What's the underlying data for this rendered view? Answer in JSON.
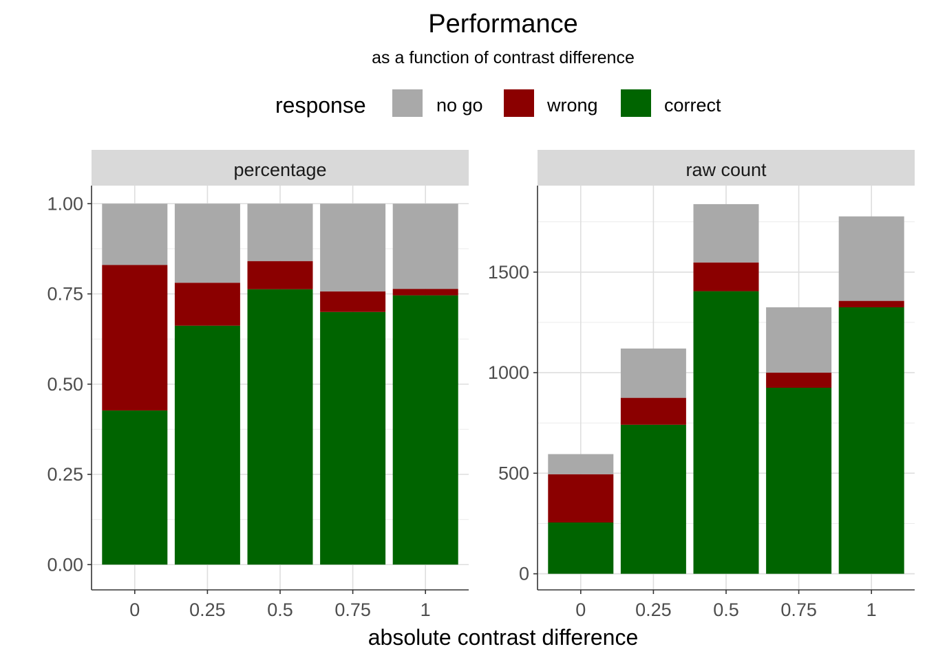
{
  "chart_data": {
    "type": "bar",
    "title": "Performance",
    "subtitle": "as a function of contrast difference",
    "xlabel": "absolute contrast difference",
    "legend": {
      "title": "response",
      "position": "top",
      "items": [
        {
          "label": "no go",
          "color": "#A9A9A9"
        },
        {
          "label": "wrong",
          "color": "#8B0000"
        },
        {
          "label": "correct",
          "color": "#006400"
        }
      ]
    },
    "categories": [
      "0",
      "0.25",
      "0.5",
      "0.75",
      "1"
    ],
    "panels": [
      {
        "strip": "percentage",
        "stacked": true,
        "ylim": [
          -0.07,
          1.05
        ],
        "yticks": [
          0,
          0.25,
          0.5,
          0.75,
          1
        ],
        "ytick_labels": [
          "0.00",
          "0.25",
          "0.50",
          "0.75",
          "1.00"
        ],
        "series": [
          {
            "name": "correct",
            "values": [
              0.427,
              0.662,
              0.763,
              0.7,
              0.746
            ]
          },
          {
            "name": "wrong",
            "values": [
              0.403,
              0.119,
              0.078,
              0.057,
              0.018
            ]
          },
          {
            "name": "no go",
            "values": [
              0.17,
              0.219,
              0.159,
              0.243,
              0.236
            ]
          }
        ]
      },
      {
        "strip": "raw count",
        "stacked": true,
        "ylim": [
          -80,
          1930
        ],
        "yticks": [
          0,
          500,
          1000,
          1500
        ],
        "ytick_labels": [
          "0",
          "500",
          "1000",
          "1500"
        ],
        "series": [
          {
            "name": "correct",
            "values": [
              255,
              741,
              1405,
              925,
              1325
            ]
          },
          {
            "name": "wrong",
            "values": [
              240,
              134,
              143,
              75,
              32
            ]
          },
          {
            "name": "no go",
            "values": [
              100,
              245,
              290,
              325,
              420
            ]
          }
        ]
      }
    ],
    "grid": true,
    "colors": {
      "panel_strip": "#D9D9D9",
      "grid": "#EBEBEB",
      "axis": "#333333"
    }
  }
}
